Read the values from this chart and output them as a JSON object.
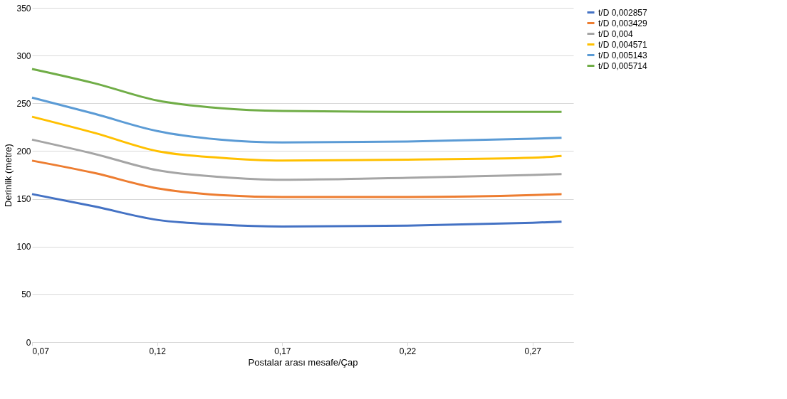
{
  "chart_data": {
    "type": "line",
    "xlabel": "Postalar arası mesafe/Çap",
    "ylabel": "Derinlik (metre)",
    "x": [
      0.07,
      0.095,
      0.12,
      0.145,
      0.17,
      0.22,
      0.27,
      0.2816
    ],
    "series": [
      {
        "name": "t/D 0,002857",
        "color": "#4472c4",
        "values": [
          155,
          142,
          128,
          123,
          121,
          122,
          125,
          126
        ]
      },
      {
        "name": "t/D 0,003429",
        "color": "#ed7d31",
        "values": [
          190,
          177,
          161,
          154,
          152,
          152,
          154,
          155
        ]
      },
      {
        "name": "t/D 0,004",
        "color": "#a5a5a5",
        "values": [
          212,
          197,
          180,
          173,
          170,
          172,
          175,
          176
        ]
      },
      {
        "name": "t/D 0,004571",
        "color": "#ffc000",
        "values": [
          236,
          219,
          200,
          193,
          190,
          191,
          193,
          195
        ]
      },
      {
        "name": "t/D 0,005143",
        "color": "#5b9bd5",
        "values": [
          256,
          239,
          221,
          212,
          209,
          210,
          213,
          214
        ]
      },
      {
        "name": "t/D 0,005714",
        "color": "#70ad47",
        "values": [
          286,
          271,
          253,
          245,
          242,
          241,
          241,
          241
        ]
      }
    ],
    "xlim": [
      0.07,
      0.2863
    ],
    "xticks": [
      {
        "value": 0.07,
        "label": "0,07"
      },
      {
        "value": 0.12,
        "label": "0,12"
      },
      {
        "value": 0.17,
        "label": "0,17"
      },
      {
        "value": 0.22,
        "label": "0,22"
      },
      {
        "value": 0.27,
        "label": "0,27"
      }
    ],
    "ylim": [
      0,
      350
    ],
    "yticks": [
      0,
      50,
      100,
      150,
      200,
      250,
      300,
      350
    ],
    "grid": "y",
    "legend": "right",
    "marker": "none",
    "line_style": "solid"
  }
}
